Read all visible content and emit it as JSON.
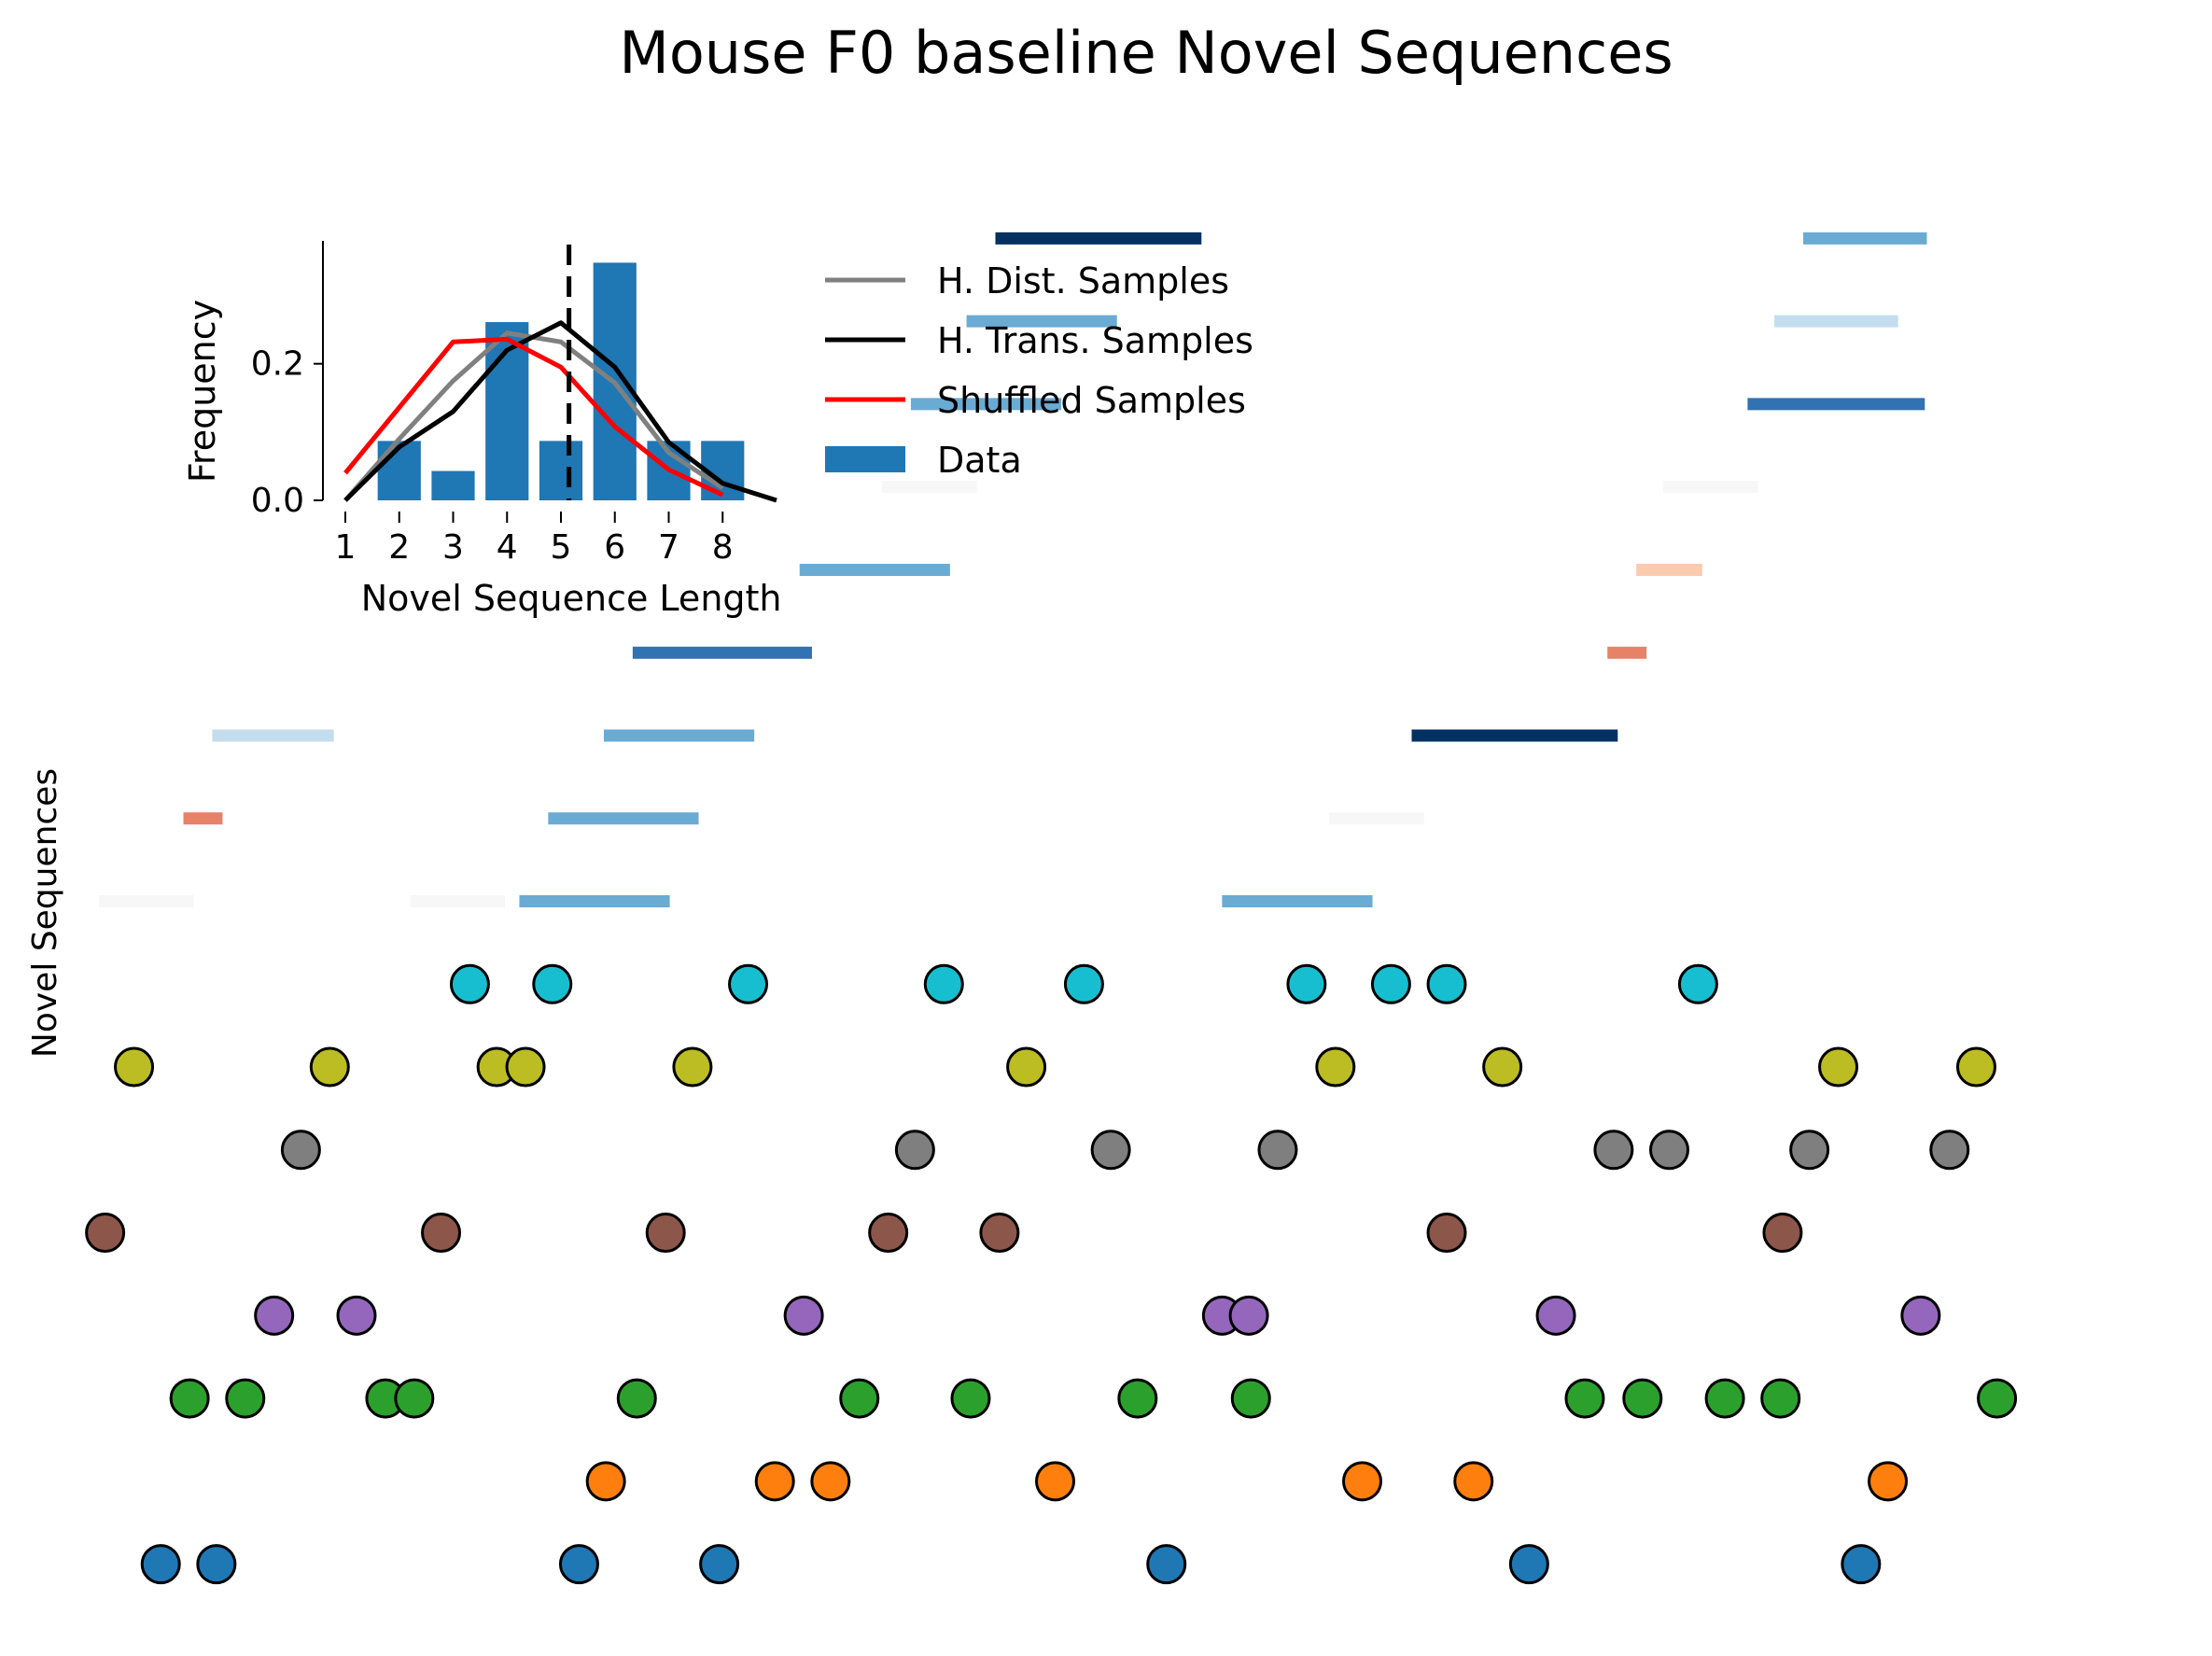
{
  "chart_data": [
    {
      "type": "scatter",
      "title": "Mouse F0 baseline Novel Sequences",
      "xlabel": "",
      "ylabel": "Novel Sequences",
      "xlim": [
        0,
        1000
      ],
      "ylim": [
        0.5,
        18.3
      ],
      "grid": false,
      "colors": {
        "marker_edge": "#000000",
        "rows": [
          "#1f77b4",
          "#ff7f0e",
          "#2ca02c",
          "#9467bd",
          "#8c564b",
          "#7f7f7f",
          "#bcbd22",
          "#17becf"
        ],
        "segment_scale": {
          "light_gray": "#f7f7f7",
          "salmon": "#e58268",
          "peach": "#fbcbb0",
          "pale_blue": "#c3ddee",
          "mid_blue": "#6aabd4",
          "blue": "#3072b2",
          "navy": "#053162"
        }
      },
      "point_rows": [
        {
          "row": 1,
          "color": "#1f77b4",
          "x": [
            30,
            57,
            233,
            301,
            518,
            694,
            855
          ]
        },
        {
          "row": 2,
          "color": "#ff7f0e",
          "x": [
            246,
            328,
            355,
            464,
            613,
            667,
            868
          ]
        },
        {
          "row": 3,
          "color": "#2ca02c",
          "x": [
            44,
            71,
            139,
            153,
            261,
            369,
            423,
            504,
            559,
            721,
            749,
            789,
            816,
            921
          ]
        },
        {
          "row": 4,
          "color": "#9467bd",
          "x": [
            85,
            125,
            342,
            545,
            558,
            707,
            884
          ]
        },
        {
          "row": 5,
          "color": "#8c564b",
          "x": [
            3,
            166,
            275,
            383,
            437,
            654,
            817
          ]
        },
        {
          "row": 6,
          "color": "#7f7f7f",
          "x": [
            98,
            396,
            491,
            572,
            735,
            762,
            830,
            898
          ]
        },
        {
          "row": 7,
          "color": "#bcbd22",
          "x": [
            17,
            112,
            193,
            207,
            288,
            450,
            600,
            681,
            844,
            911
          ]
        },
        {
          "row": 8,
          "color": "#17becf",
          "x": [
            180,
            220,
            315,
            410,
            478,
            586,
            627,
            654,
            776
          ]
        }
      ],
      "segments": [
        {
          "row": 9,
          "start": 0,
          "end": 46,
          "color": "#f7f7f7"
        },
        {
          "row": 9,
          "start": 151,
          "end": 197,
          "color": "#f7f7f7"
        },
        {
          "row": 9,
          "start": 204,
          "end": 277,
          "color": "#6aabd4"
        },
        {
          "row": 9,
          "start": 545,
          "end": 618,
          "color": "#6aabd4"
        },
        {
          "row": 10,
          "start": 41,
          "end": 60,
          "color": "#e58268"
        },
        {
          "row": 10,
          "start": 218,
          "end": 291,
          "color": "#6aabd4"
        },
        {
          "row": 10,
          "start": 597,
          "end": 643,
          "color": "#f7f7f7"
        },
        {
          "row": 11,
          "start": 55,
          "end": 114,
          "color": "#c3ddee"
        },
        {
          "row": 11,
          "start": 245,
          "end": 318,
          "color": "#6aabd4"
        },
        {
          "row": 11,
          "start": 637,
          "end": 737,
          "color": "#053162"
        },
        {
          "row": 12,
          "start": 259,
          "end": 346,
          "color": "#3072b2"
        },
        {
          "row": 12,
          "start": 732,
          "end": 751,
          "color": "#e58268"
        },
        {
          "row": 13,
          "start": 340,
          "end": 413,
          "color": "#6aabd4"
        },
        {
          "row": 13,
          "start": 746,
          "end": 778,
          "color": "#fbcbb0"
        },
        {
          "row": 14,
          "start": 380,
          "end": 426,
          "color": "#f7f7f7"
        },
        {
          "row": 14,
          "start": 759,
          "end": 805,
          "color": "#f7f7f7"
        },
        {
          "row": 15,
          "start": 394,
          "end": 467,
          "color": "#6aabd4"
        },
        {
          "row": 15,
          "start": 800,
          "end": 886,
          "color": "#3072b2"
        },
        {
          "row": 16,
          "start": 421,
          "end": 494,
          "color": "#6aabd4"
        },
        {
          "row": 16,
          "start": 813,
          "end": 873,
          "color": "#c3ddee"
        },
        {
          "row": 17,
          "start": 435,
          "end": 535,
          "color": "#053162"
        },
        {
          "row": 17,
          "start": 827,
          "end": 887,
          "color": "#6aabd4"
        }
      ]
    },
    {
      "type": "bar",
      "title": "",
      "xlabel": "Novel Sequence Length",
      "ylabel": "Frequency",
      "categories": [
        1,
        2,
        3,
        4,
        5,
        6,
        7,
        8
      ],
      "xlim": [
        1,
        9
      ],
      "ylim": [
        0,
        0.38
      ],
      "yticks": [
        0.0,
        0.2
      ],
      "ytick_labels": [
        "0.0",
        "0.2"
      ],
      "legend_placement": "right",
      "bar_color": "#1f77b4",
      "mean_line": {
        "x": 5.15,
        "style": "dashed",
        "color": "#000000"
      },
      "series": [
        {
          "name": "Data",
          "kind": "bar",
          "color": "#1f77b4",
          "x": [
            2,
            3,
            4,
            5,
            6,
            7,
            8
          ],
          "values": [
            0.087,
            0.043,
            0.261,
            0.087,
            0.348,
            0.087,
            0.087
          ]
        },
        {
          "name": "H. Dist. Samples",
          "kind": "line",
          "color": "#808080",
          "x": [
            1,
            2,
            3,
            4,
            5,
            6,
            7,
            8
          ],
          "values": [
            0.0,
            0.09,
            0.175,
            0.245,
            0.232,
            0.172,
            0.07,
            0.018
          ]
        },
        {
          "name": "H. Trans. Samples",
          "kind": "line",
          "color": "#000000",
          "x": [
            1,
            2,
            3,
            4,
            5,
            6,
            7,
            8,
            9
          ],
          "values": [
            0.0,
            0.078,
            0.13,
            0.22,
            0.26,
            0.195,
            0.085,
            0.025,
            0.0
          ]
        },
        {
          "name": "Shuffled Samples",
          "kind": "line",
          "color": "#ff0000",
          "x": [
            1,
            2,
            3,
            4,
            5,
            6,
            7,
            8
          ],
          "values": [
            0.04,
            0.136,
            0.232,
            0.236,
            0.195,
            0.108,
            0.045,
            0.008
          ]
        }
      ]
    }
  ]
}
